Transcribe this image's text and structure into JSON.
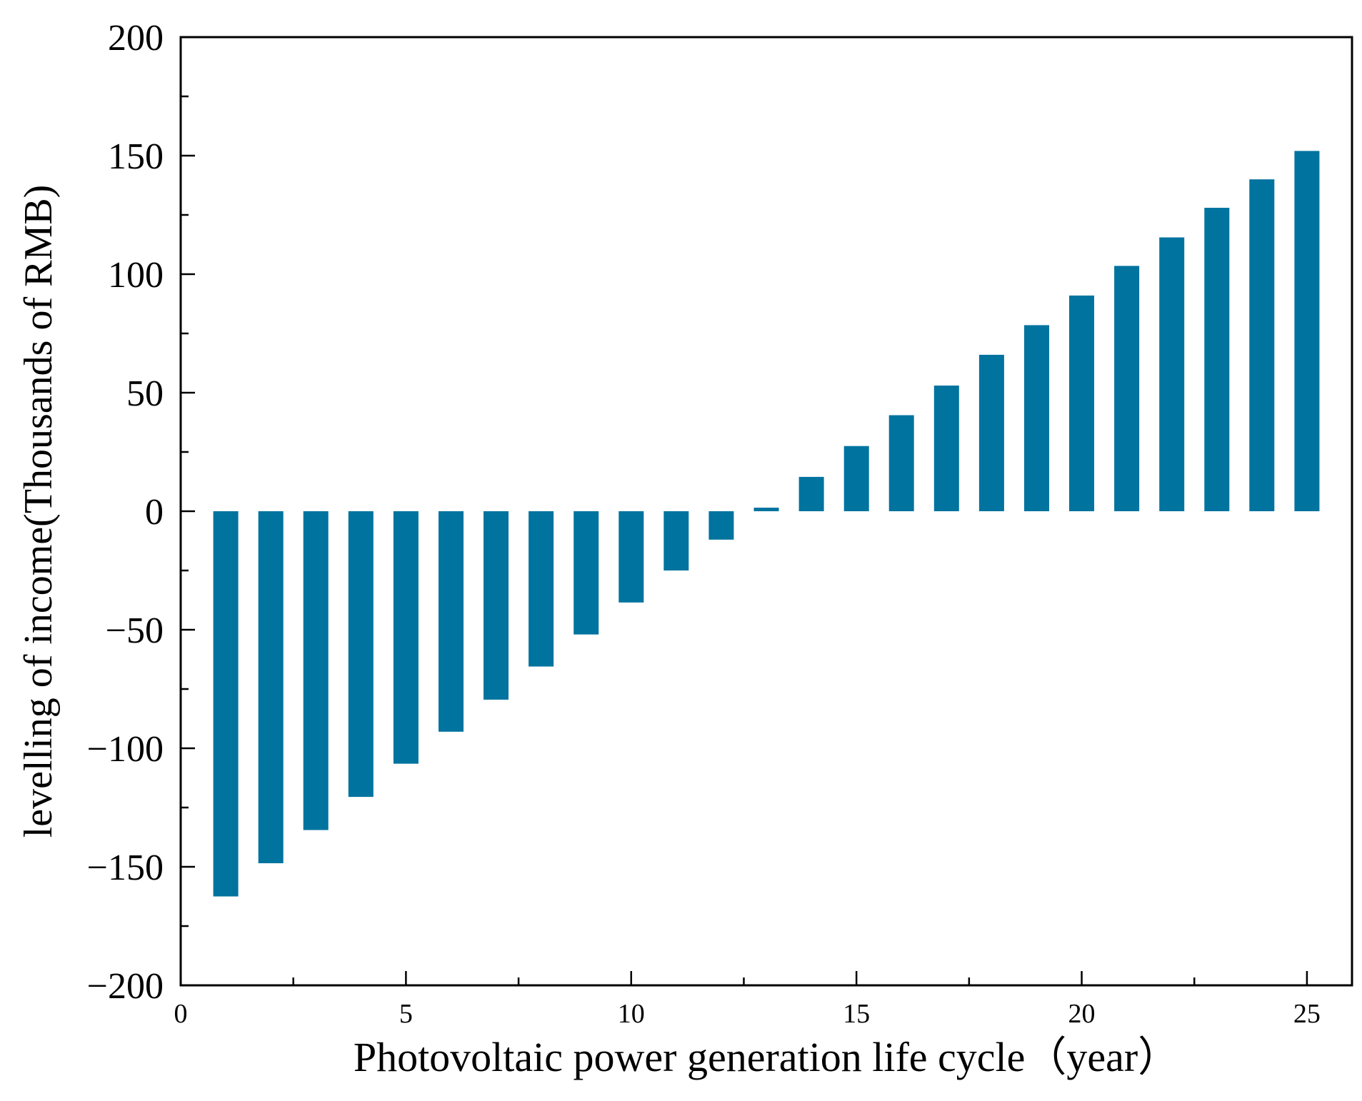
{
  "chart_data": {
    "type": "bar",
    "title": "",
    "xlabel": "Photovoltaic power generation life cycle（year）",
    "ylabel": "levelling of income(Thousands of RMB)",
    "xlim": [
      0,
      26
    ],
    "ylim": [
      -200,
      200
    ],
    "xticks": [
      0,
      5,
      10,
      15,
      20,
      25
    ],
    "xtick_labels": [
      "0",
      "5",
      "10",
      "15",
      "20",
      "25"
    ],
    "yticks": [
      -200,
      -150,
      -100,
      -50,
      0,
      50,
      100,
      150,
      200
    ],
    "ytick_labels": [
      "−200",
      "−150",
      "−100",
      "−50",
      "0",
      "50",
      "100",
      "150",
      "200"
    ],
    "grid": false,
    "bar_color": "#00739F",
    "x": [
      1,
      2,
      3,
      4,
      5,
      6,
      7,
      8,
      9,
      10,
      11,
      12,
      13,
      14,
      15,
      16,
      17,
      18,
      19,
      20,
      21,
      22,
      23,
      24,
      25
    ],
    "values": [
      -162.5,
      -148.5,
      -134.5,
      -120.5,
      -106.5,
      -93,
      -79.5,
      -65.5,
      -52,
      -38.5,
      -25,
      -12,
      1.5,
      14.5,
      27.5,
      40.5,
      53,
      66,
      78.5,
      91,
      103.5,
      115.5,
      128,
      140,
      152
    ]
  }
}
